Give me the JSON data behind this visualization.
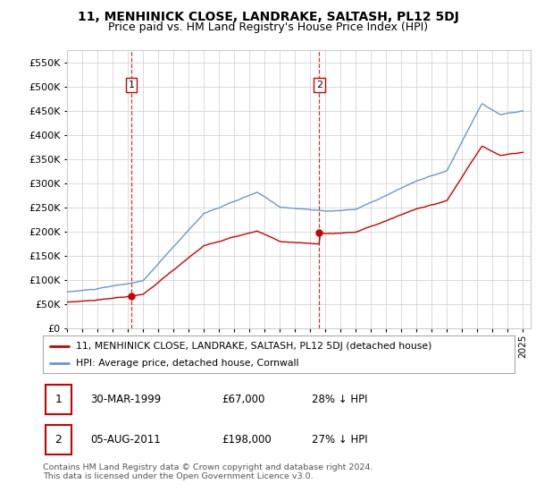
{
  "title": "11, MENHINICK CLOSE, LANDRAKE, SALTASH, PL12 5DJ",
  "subtitle": "Price paid vs. HM Land Registry's House Price Index (HPI)",
  "yticks": [
    0,
    50000,
    100000,
    150000,
    200000,
    250000,
    300000,
    350000,
    400000,
    450000,
    500000,
    550000
  ],
  "xmin": 1995.0,
  "xmax": 2025.5,
  "ymin": 0,
  "ymax": 575000,
  "sale1_x": 1999.24,
  "sale1_y": 67000,
  "sale2_x": 2011.59,
  "sale2_y": 198000,
  "legend_sale_label": "11, MENHINICK CLOSE, LANDRAKE, SALTASH, PL12 5DJ (detached house)",
  "legend_hpi_label": "HPI: Average price, detached house, Cornwall",
  "footnote": "Contains HM Land Registry data © Crown copyright and database right 2024.\nThis data is licensed under the Open Government Licence v3.0.",
  "sale_color": "#cc0000",
  "hpi_color": "#6699cc",
  "background_color": "#ffffff",
  "grid_color": "#cccccc",
  "title_fontsize": 10,
  "subtitle_fontsize": 9
}
